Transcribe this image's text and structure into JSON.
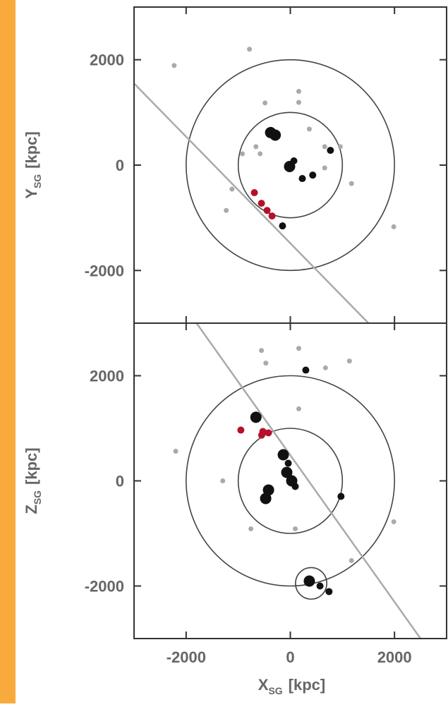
{
  "chart_data": [
    {
      "type": "scatter",
      "y_label": {
        "main": "Y",
        "sub": "SG",
        "unit": "[kpc]"
      },
      "xlim": [
        -3000,
        3000
      ],
      "ylim": [
        -3000,
        3000
      ],
      "xticks": [
        -2000,
        0,
        2000
      ],
      "yticks": [
        -2000,
        0,
        2000
      ],
      "x_tick_labels": false,
      "circles": [
        {
          "x": 0,
          "y": 0,
          "r": 1000
        },
        {
          "x": 0,
          "y": 0,
          "r": 2000
        }
      ],
      "lines": [
        {
          "x": [
            -3000,
            1500
          ],
          "y": [
            1550,
            -3000
          ]
        }
      ],
      "series": [
        {
          "color": "#aaaaaa",
          "radius": 3.5,
          "x": [
            -784,
            -2230,
            -486,
            162,
            162,
            -660,
            365,
            660,
            960,
            660,
            1175,
            -580,
            -920,
            1986,
            -1230,
            -1120
          ],
          "values": [
            2200,
            1890,
            1180,
            1400,
            1190,
            350,
            685,
            350,
            350,
            -54,
            -350,
            215,
            215,
            -1170,
            -860,
            -455
          ]
        },
        {
          "color": "#111111",
          "radius": 5,
          "x": [
            770,
            230,
            430,
            -150,
            68
          ],
          "values": [
            280,
            -255,
            -190,
            -1154,
            80
          ]
        },
        {
          "color": "#111111",
          "radius": 8,
          "x": [
            -378,
            -290,
            -14
          ],
          "values": [
            617,
            570,
            -27
          ]
        },
        {
          "color": "#b8102a",
          "radius": 5,
          "x": [
            -690,
            -554,
            -446,
            -351
          ],
          "values": [
            -523,
            -725,
            -860,
            -966
          ]
        }
      ]
    },
    {
      "type": "scatter",
      "y_label": {
        "main": "Z",
        "sub": "SG",
        "unit": "[kpc]"
      },
      "x_label": {
        "main": "X",
        "sub": "SG",
        "unit": "[kpc]"
      },
      "xlim": [
        -3000,
        3000
      ],
      "ylim": [
        -3000,
        3000
      ],
      "xticks": [
        -2000,
        0,
        2000
      ],
      "yticks": [
        -2000,
        0,
        2000
      ],
      "x_tick_labels": true,
      "circles": [
        {
          "x": 0,
          "y": 0,
          "r": 1000
        },
        {
          "x": 0,
          "y": 0,
          "r": 2000
        },
        {
          "x": 400,
          "y": -1950,
          "r": 300
        }
      ],
      "lines": [
        {
          "x": [
            -1800,
            2500
          ],
          "y": [
            3000,
            -3000
          ]
        }
      ],
      "series": [
        {
          "color": "#aaaaaa",
          "radius": 3.5,
          "x": [
            -554,
            -470,
            162,
            675,
            1135,
            162,
            -2200,
            -1297,
            -757,
            95,
            1986,
            1175
          ],
          "values": [
            2480,
            2240,
            2520,
            2150,
            2280,
            1370,
            564,
            0,
            -912,
            -912,
            -778,
            -1516
          ]
        },
        {
          "color": "#111111",
          "radius": 5,
          "x": [
            297,
            973,
            743,
            570,
            -40,
            95
          ],
          "values": [
            2107,
            -295,
            -2107,
            -2000,
            335,
            -107
          ]
        },
        {
          "color": "#111111",
          "radius": 8,
          "x": [
            -660,
            -135,
            -68,
            27,
            -419,
            -473,
            365
          ],
          "values": [
            1210,
            497,
            161,
            0,
            -174,
            -335,
            -1906
          ]
        },
        {
          "color": "#b8102a",
          "radius": 5,
          "x": [
            -527,
            -420,
            -550,
            -950
          ],
          "values": [
            940,
            913,
            870,
            966
          ]
        }
      ]
    }
  ]
}
